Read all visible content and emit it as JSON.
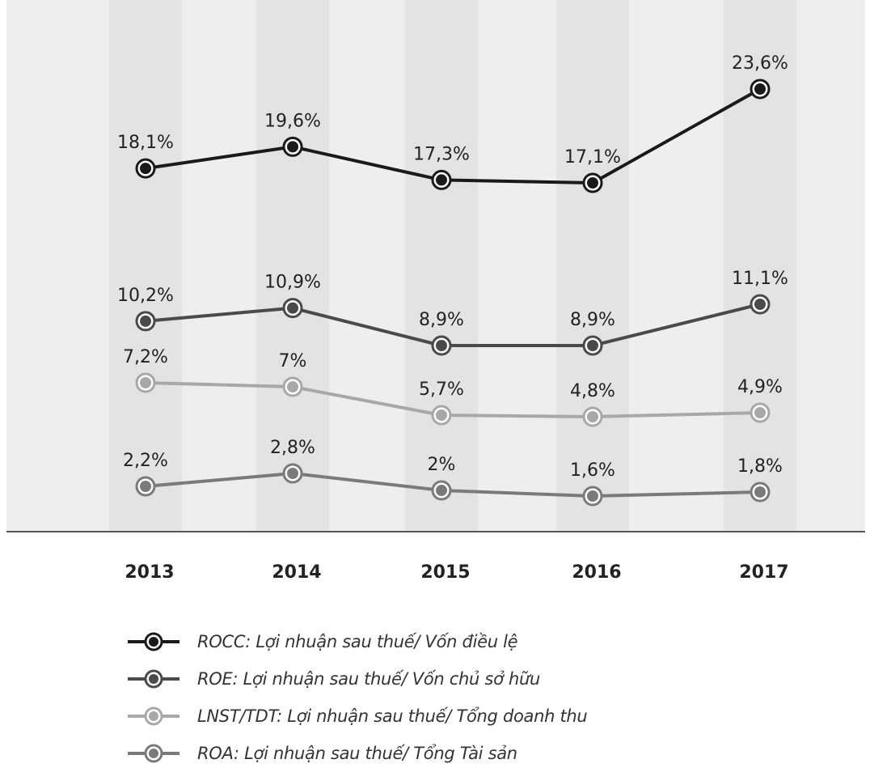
{
  "chart_data": {
    "type": "line",
    "x": [
      "2013",
      "2014",
      "2015",
      "2016",
      "2017"
    ],
    "series": [
      {
        "name": "ROCC: Lợi nhuận sau thuế/ Vốn điều lệ",
        "values": [
          18.1,
          19.6,
          17.3,
          17.1,
          23.6
        ],
        "labels": [
          "18,1%",
          "19,6%",
          "17,3%",
          "17,1%",
          "23,6%"
        ],
        "color": "#1a1a1a"
      },
      {
        "name": "ROE: Lợi nhuận sau thuế/ Vốn chủ sở hữu",
        "values": [
          10.2,
          10.9,
          8.9,
          8.9,
          11.1
        ],
        "labels": [
          "10,2%",
          "10,9%",
          "8,9%",
          "8,9%",
          "11,1%"
        ],
        "color": "#4a4a4a"
      },
      {
        "name": "LNST/TDT: Lợi nhuận sau thuế/ Tổng doanh thu",
        "values": [
          7.2,
          7.0,
          5.7,
          4.8,
          4.9
        ],
        "labels": [
          "7,2%",
          "7%",
          "5,7%",
          "4,8%",
          "4,9%"
        ],
        "color": "#a8a8a8"
      },
      {
        "name": "ROA: Lợi nhuận sau thuế/ Tổng Tài sản",
        "values": [
          2.2,
          2.8,
          2.0,
          1.6,
          1.8
        ],
        "labels": [
          "2,2%",
          "2,8%",
          "2%",
          "1,6%",
          "1,8%"
        ],
        "color": "#7a7a7a"
      }
    ],
    "grid": false,
    "legend_position": "bottom-left"
  }
}
